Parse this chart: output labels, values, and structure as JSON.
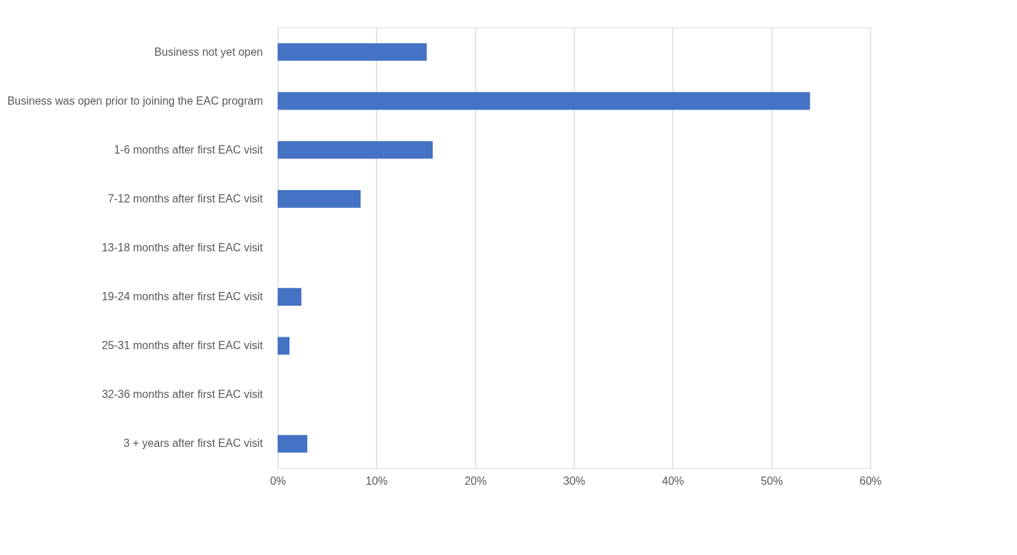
{
  "chart_data": {
    "type": "bar",
    "orientation": "horizontal",
    "categories": [
      "Business not yet open",
      "Business was open prior to joining the EAC program",
      "1-6 months after first EAC visit",
      "7-12 months after first EAC visit",
      "13-18 months after first EAC visit",
      "19-24 months after first EAC visit",
      "25-31 months after first EAC visit",
      "32-36 months after first EAC visit",
      "3 + years after first EAC visit"
    ],
    "values": [
      15.1,
      53.9,
      15.7,
      8.4,
      0,
      2.4,
      1.2,
      0,
      3.0
    ],
    "color": "#4472c4",
    "xlim": [
      0,
      60
    ],
    "xticks": [
      {
        "value": 0,
        "label": "0%"
      },
      {
        "value": 10,
        "label": "10%"
      },
      {
        "value": 20,
        "label": "20%"
      },
      {
        "value": 30,
        "label": "30%"
      },
      {
        "value": 40,
        "label": "40%"
      },
      {
        "value": 50,
        "label": "50%"
      },
      {
        "value": 60,
        "label": "60%"
      }
    ],
    "grid": "x"
  }
}
